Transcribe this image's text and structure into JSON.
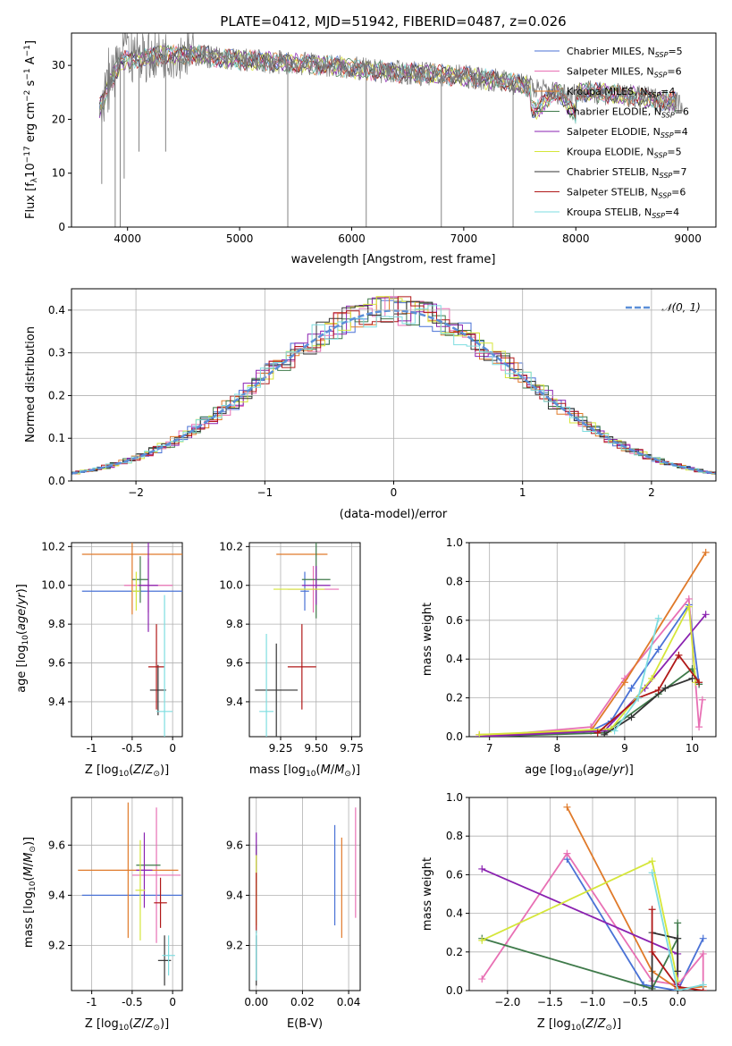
{
  "figure": {
    "title": "PLATE=0412, MJD=51942, FIBERID=0487, z=0.026",
    "models": [
      {
        "label": "Chabrier MILES, N",
        "sub": "SSP",
        "suffix": "=5",
        "color": "#4a72d6"
      },
      {
        "label": "Salpeter MILES, N",
        "sub": "SSP",
        "suffix": "=6",
        "color": "#e870b4"
      },
      {
        "label": "Kroupa MILES, N",
        "sub": "SSP",
        "suffix": "=4",
        "color": "#e07a2a"
      },
      {
        "label": "Chabrier ELODIE, N",
        "sub": "SSP",
        "suffix": "=6",
        "color": "#3f7a4a"
      },
      {
        "label": "Salpeter ELODIE, N",
        "sub": "SSP",
        "suffix": "=4",
        "color": "#8a22b0"
      },
      {
        "label": "Kroupa ELODIE, N",
        "sub": "SSP",
        "suffix": "=5",
        "color": "#d5e63a"
      },
      {
        "label": "Chabrier STELIB, N",
        "sub": "SSP",
        "suffix": "=7",
        "color": "#333333"
      },
      {
        "label": "Salpeter STELIB, N",
        "sub": "SSP",
        "suffix": "=6",
        "color": "#b01818"
      },
      {
        "label": "Kroupa STELIB, N",
        "sub": "SSP",
        "suffix": "=4",
        "color": "#7edde0"
      }
    ]
  },
  "chart_data": [
    {
      "id": "spectrum",
      "type": "line",
      "xlabel": "wavelength [Angstrom, rest frame]",
      "ylabel": "Flux [f_λ 10^-17 erg cm^-2 s^-1 A^-1]",
      "xlim": [
        3500,
        9250
      ],
      "ylim": [
        0,
        36
      ],
      "xticks": [
        4000,
        5000,
        6000,
        7000,
        8000,
        9000
      ],
      "yticks": [
        0,
        10,
        20,
        30
      ],
      "grid": false,
      "legend": "right",
      "continuum": {
        "x": [
          3750,
          3850,
          3950,
          4100,
          4300,
          4600,
          5000,
          5400,
          5800,
          6200,
          6600,
          7000,
          7400,
          7800,
          8200,
          8600,
          9000
        ],
        "y": [
          22,
          27,
          31,
          31,
          32,
          32,
          31,
          30.5,
          30,
          29,
          28.5,
          28,
          27,
          25,
          25,
          24,
          23
        ]
      },
      "absorption_dips": [
        {
          "x": 3770,
          "y": 8
        },
        {
          "x": 3890,
          "y": 0
        },
        {
          "x": 3935,
          "y": 0
        },
        {
          "x": 3970,
          "y": 9
        },
        {
          "x": 4102,
          "y": 14
        },
        {
          "x": 4340,
          "y": 14
        },
        {
          "x": 5430,
          "y": 0
        },
        {
          "x": 6130,
          "y": 0
        },
        {
          "x": 6800,
          "y": 0
        },
        {
          "x": 7440,
          "y": 0
        }
      ]
    },
    {
      "id": "residuals",
      "type": "line",
      "xlabel": "(data-model)/error",
      "ylabel": "Normed distribution",
      "xlim": [
        -2.5,
        2.5
      ],
      "ylim": [
        0,
        0.45
      ],
      "xticks": [
        -2,
        -1,
        0,
        1,
        2
      ],
      "xticklabels": [
        "−2",
        "−1",
        "0",
        "1",
        "2"
      ],
      "yticks": [
        0.0,
        0.1,
        0.2,
        0.3,
        0.4
      ],
      "grid": true,
      "legend": "top-right",
      "series": [
        {
          "name": "𝒩(0, 1)",
          "style": "dashed",
          "color": "#5b8fd8"
        }
      ]
    },
    {
      "id": "age-vs-Z",
      "type": "scatter",
      "xlabel": "Z [log10(Z/Z⊙)]",
      "ylabel": "age  [log10(age/yr)]",
      "xlim": [
        -1.25,
        0.12
      ],
      "ylim": [
        9.22,
        10.22
      ],
      "xticks": [
        -1.0,
        -0.5,
        0.0
      ],
      "yticks": [
        9.4,
        9.6,
        9.8,
        10.0,
        10.2
      ],
      "grid": true,
      "points": [
        {
          "m": 0,
          "x": -0.5,
          "xerr": 0.62,
          "y": 9.97,
          "yerr": 0.0
        },
        {
          "m": 1,
          "x": -0.3,
          "xerr": 0.3,
          "y": 10.0,
          "yerr": 0.14
        },
        {
          "m": 2,
          "x": -0.5,
          "xerr": 0.62,
          "y": 10.16,
          "yerr": 0.31
        },
        {
          "m": 3,
          "x": -0.4,
          "xerr": 0.1,
          "y": 10.03,
          "yerr": 0.12
        },
        {
          "m": 4,
          "x": -0.3,
          "xerr": 0.12,
          "y": 10.0,
          "yerr": 0.24
        },
        {
          "m": 5,
          "x": -0.45,
          "xerr": 0.05,
          "y": 9.97,
          "yerr": 0.1
        },
        {
          "m": 6,
          "x": -0.18,
          "xerr": 0.1,
          "y": 9.46,
          "yerr": 0.13
        },
        {
          "m": 7,
          "x": -0.2,
          "xerr": 0.1,
          "y": 9.58,
          "yerr": 0.22
        },
        {
          "m": 8,
          "x": -0.1,
          "xerr": 0.1,
          "y": 9.35,
          "yerr": 0.6
        }
      ]
    },
    {
      "id": "age-vs-mass",
      "type": "scatter",
      "xlabel": "mass [log10(M/M⊙)]",
      "xlim": [
        9.03,
        9.81
      ],
      "ylim": [
        9.22,
        10.22
      ],
      "xticks": [
        9.25,
        9.5,
        9.75
      ],
      "xticklabels": [
        "9.25",
        "9.50",
        "9.75"
      ],
      "yticks": [
        9.4,
        9.6,
        9.8,
        10.0,
        10.2
      ],
      "grid": true,
      "points": [
        {
          "m": 0,
          "x": 9.42,
          "xerr": 0.03,
          "y": 9.97,
          "yerr": 0.1
        },
        {
          "m": 1,
          "x": 9.48,
          "xerr": 0.18,
          "y": 9.98,
          "yerr": 0.12
        },
        {
          "m": 2,
          "x": 9.4,
          "xerr": 0.18,
          "y": 10.16,
          "yerr": 0.0
        },
        {
          "m": 3,
          "x": 9.5,
          "xerr": 0.1,
          "y": 10.03,
          "yerr": 0.2
        },
        {
          "m": 4,
          "x": 9.5,
          "xerr": 0.1,
          "y": 10.0,
          "yerr": 0.1
        },
        {
          "m": 5,
          "x": 9.38,
          "xerr": 0.18,
          "y": 9.98,
          "yerr": 0.0
        },
        {
          "m": 6,
          "x": 9.22,
          "xerr": 0.15,
          "y": 9.46,
          "yerr": 0.24
        },
        {
          "m": 7,
          "x": 9.4,
          "xerr": 0.1,
          "y": 9.58,
          "yerr": 0.22
        },
        {
          "m": 8,
          "x": 9.15,
          "xerr": 0.05,
          "y": 9.35,
          "yerr": 0.4
        }
      ]
    },
    {
      "id": "mass-weight-vs-age",
      "type": "line",
      "xlabel": "age  [log10(age/yr)]",
      "ylabel": "mass weight",
      "xlim": [
        6.7,
        10.35
      ],
      "ylim": [
        0,
        1
      ],
      "xticks": [
        7,
        8,
        9,
        10
      ],
      "yticks": [
        0.0,
        0.2,
        0.4,
        0.6,
        0.8,
        1.0
      ],
      "grid": true,
      "series": [
        {
          "m": 0,
          "points": [
            [
              6.85,
              0.0
            ],
            [
              8.5,
              0.03
            ],
            [
              8.8,
              0.08
            ],
            [
              9.1,
              0.25
            ],
            [
              9.5,
              0.45
            ],
            [
              9.95,
              0.68
            ],
            [
              10.1,
              0.27
            ]
          ]
        },
        {
          "m": 1,
          "points": [
            [
              6.85,
              0.0
            ],
            [
              8.5,
              0.05
            ],
            [
              9.0,
              0.3
            ],
            [
              9.95,
              0.71
            ],
            [
              10.1,
              0.05
            ],
            [
              10.15,
              0.19
            ]
          ]
        },
        {
          "m": 2,
          "points": [
            [
              6.85,
              0.01
            ],
            [
              8.5,
              0.03
            ],
            [
              9.0,
              0.28
            ],
            [
              10.2,
              0.95
            ]
          ]
        },
        {
          "m": 3,
          "points": [
            [
              6.85,
              0.0
            ],
            [
              8.7,
              0.02
            ],
            [
              9.5,
              0.22
            ],
            [
              10.0,
              0.35
            ],
            [
              10.1,
              0.27
            ]
          ]
        },
        {
          "m": 4,
          "points": [
            [
              6.85,
              0.0
            ],
            [
              8.7,
              0.03
            ],
            [
              9.3,
              0.25
            ],
            [
              10.2,
              0.63
            ]
          ]
        },
        {
          "m": 5,
          "points": [
            [
              6.85,
              0.01
            ],
            [
              8.8,
              0.04
            ],
            [
              9.4,
              0.3
            ],
            [
              9.95,
              0.67
            ],
            [
              10.05,
              0.28
            ]
          ]
        },
        {
          "m": 6,
          "points": [
            [
              8.7,
              0.01
            ],
            [
              9.1,
              0.1
            ],
            [
              9.6,
              0.25
            ],
            [
              10.0,
              0.3
            ]
          ]
        },
        {
          "m": 7,
          "points": [
            [
              8.6,
              0.02
            ],
            [
              9.2,
              0.2
            ],
            [
              9.5,
              0.24
            ],
            [
              9.8,
              0.42
            ],
            [
              10.1,
              0.28
            ]
          ]
        },
        {
          "m": 8,
          "points": [
            [
              8.85,
              0.03
            ],
            [
              9.2,
              0.2
            ],
            [
              9.5,
              0.61
            ]
          ]
        }
      ]
    },
    {
      "id": "mass-vs-Z",
      "type": "scatter",
      "xlabel": "Z [log10(Z/Z⊙)]",
      "ylabel": "mass [log10(M/M⊙)]",
      "xlim": [
        -1.25,
        0.12
      ],
      "ylim": [
        9.02,
        9.79
      ],
      "xticks": [
        -1.0,
        -0.5,
        0.0
      ],
      "yticks": [
        9.2,
        9.4,
        9.6
      ],
      "grid": true,
      "points": [
        {
          "m": 0,
          "x": -0.5,
          "xerr": 0.62,
          "y": 9.4,
          "yerr": 0.0
        },
        {
          "m": 1,
          "x": -0.2,
          "xerr": 0.3,
          "y": 9.48,
          "yerr": 0.27
        },
        {
          "m": 2,
          "x": -0.55,
          "xerr": 0.62,
          "y": 9.5,
          "yerr": 0.27
        },
        {
          "m": 3,
          "x": -0.3,
          "xerr": 0.15,
          "y": 9.52,
          "yerr": 0.0
        },
        {
          "m": 4,
          "x": -0.35,
          "xerr": 0.1,
          "y": 9.5,
          "yerr": 0.15
        },
        {
          "m": 5,
          "x": -0.4,
          "xerr": 0.06,
          "y": 9.42,
          "yerr": 0.2
        },
        {
          "m": 6,
          "x": -0.1,
          "xerr": 0.08,
          "y": 9.14,
          "yerr": 0.1
        },
        {
          "m": 7,
          "x": -0.15,
          "xerr": 0.08,
          "y": 9.37,
          "yerr": 0.1
        },
        {
          "m": 8,
          "x": -0.05,
          "xerr": 0.08,
          "y": 9.16,
          "yerr": 0.08
        }
      ]
    },
    {
      "id": "mass-vs-ebv",
      "type": "scatter",
      "xlabel": "E(B-V)",
      "xlim": [
        -0.003,
        0.045
      ],
      "ylim": [
        9.02,
        9.79
      ],
      "xticks": [
        0.0,
        0.02,
        0.04
      ],
      "xticklabels": [
        "0.00",
        "0.02",
        "0.04"
      ],
      "yticks": [
        9.2,
        9.4,
        9.6
      ],
      "grid": true,
      "points": [
        {
          "m": 0,
          "x": 0.034,
          "xerr": 0.0,
          "y": 9.48,
          "yerr": 0.2
        },
        {
          "m": 1,
          "x": 0.043,
          "xerr": 0.0,
          "y": 9.53,
          "yerr": 0.22
        },
        {
          "m": 2,
          "x": 0.037,
          "xerr": 0.0,
          "y": 9.43,
          "yerr": 0.2
        },
        {
          "m": 3,
          "x": 0.0,
          "xerr": 0.0,
          "y": 9.5,
          "yerr": 0.1
        },
        {
          "m": 4,
          "x": 0.0,
          "xerr": 0.0,
          "y": 9.55,
          "yerr": 0.1
        },
        {
          "m": 5,
          "x": 0.0,
          "xerr": 0.0,
          "y": 9.42,
          "yerr": 0.14
        },
        {
          "m": 6,
          "x": 0.0,
          "xerr": 0.0,
          "y": 9.14,
          "yerr": 0.1
        },
        {
          "m": 7,
          "x": 0.0,
          "xerr": 0.0,
          "y": 9.37,
          "yerr": 0.12
        },
        {
          "m": 8,
          "x": 0.0,
          "xerr": 0.0,
          "y": 9.16,
          "yerr": 0.1
        }
      ]
    },
    {
      "id": "mass-weight-vs-Z",
      "type": "line",
      "xlabel": "Z [log10(Z/Z⊙)]",
      "ylabel": "mass weight",
      "xlim": [
        -2.45,
        0.45
      ],
      "ylim": [
        0,
        1
      ],
      "xticks": [
        -2.0,
        -1.5,
        -1.0,
        -0.5,
        0.0
      ],
      "xticklabels": [
        "−2.0",
        "−1.5",
        "−1.0",
        "−0.5",
        "0.0"
      ],
      "yticks": [
        0.0,
        0.2,
        0.4,
        0.6,
        0.8,
        1.0
      ],
      "grid": true,
      "series": [
        {
          "m": 0,
          "points": [
            [
              -1.3,
              0.68
            ],
            [
              -0.4,
              0.03
            ],
            [
              0.0,
              0.0
            ],
            [
              0.3,
              0.27
            ]
          ]
        },
        {
          "m": 1,
          "points": [
            [
              -2.3,
              0.06
            ],
            [
              -1.3,
              0.71
            ],
            [
              -0.3,
              0.05
            ],
            [
              0.0,
              0.03
            ],
            [
              0.3,
              0.19
            ],
            [
              0.3,
              0.0
            ]
          ]
        },
        {
          "m": 2,
          "points": [
            [
              -1.3,
              0.95
            ],
            [
              -0.3,
              0.1
            ],
            [
              0.0,
              0.01
            ],
            [
              0.3,
              0.02
            ]
          ]
        },
        {
          "m": 3,
          "points": [
            [
              -2.3,
              0.27
            ],
            [
              -0.3,
              0.01
            ],
            [
              0.0,
              0.27
            ],
            [
              0.0,
              0.35
            ]
          ]
        },
        {
          "m": 4,
          "points": [
            [
              -2.3,
              0.63
            ],
            [
              0.0,
              0.19
            ],
            [
              0.0,
              0.03
            ]
          ]
        },
        {
          "m": 5,
          "points": [
            [
              -2.3,
              0.26
            ],
            [
              -0.3,
              0.67
            ],
            [
              0.0,
              0.05
            ]
          ]
        },
        {
          "m": 6,
          "points": [
            [
              -0.3,
              0.0
            ],
            [
              -0.3,
              0.3
            ],
            [
              0.0,
              0.27
            ],
            [
              0.0,
              0.1
            ]
          ]
        },
        {
          "m": 7,
          "points": [
            [
              -0.3,
              0.42
            ],
            [
              -0.3,
              0.2
            ],
            [
              0.0,
              0.02
            ],
            [
              0.3,
              0.0
            ]
          ]
        },
        {
          "m": 8,
          "points": [
            [
              -0.3,
              0.61
            ],
            [
              0.0,
              0.0
            ],
            [
              0.3,
              0.03
            ]
          ]
        }
      ]
    }
  ]
}
